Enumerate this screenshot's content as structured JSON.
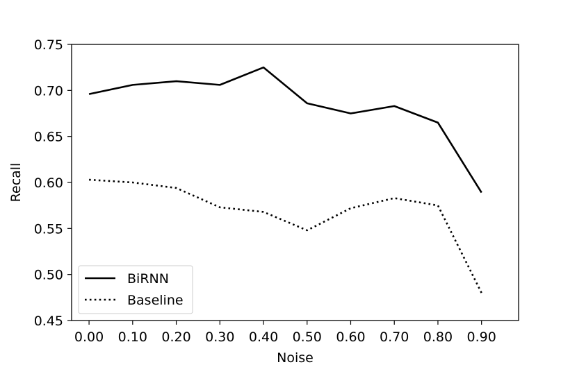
{
  "chart_data": {
    "type": "line",
    "title": "",
    "xlabel": "Noise",
    "ylabel": "Recall",
    "x": [
      0.0,
      0.1,
      0.2,
      0.3,
      0.4,
      0.5,
      0.6,
      0.7,
      0.8,
      0.9
    ],
    "xticks": [
      "0.00",
      "0.10",
      "0.20",
      "0.30",
      "0.40",
      "0.50",
      "0.60",
      "0.70",
      "0.80",
      "0.90"
    ],
    "yticks": [
      "0.45",
      "0.50",
      "0.55",
      "0.60",
      "0.65",
      "0.70",
      "0.75"
    ],
    "xlim": [
      -0.04,
      0.985
    ],
    "ylim": [
      0.45,
      0.75
    ],
    "grid": false,
    "legend": "lower-left",
    "series": [
      {
        "name": "BiRNN",
        "style": "solid",
        "color": "#000000",
        "values": [
          0.696,
          0.706,
          0.71,
          0.706,
          0.725,
          0.686,
          0.675,
          0.683,
          0.665,
          0.589
        ]
      },
      {
        "name": "Baseline",
        "style": "dotted",
        "color": "#000000",
        "values": [
          0.603,
          0.6,
          0.594,
          0.573,
          0.568,
          0.548,
          0.572,
          0.583,
          0.575,
          0.48
        ]
      }
    ]
  }
}
